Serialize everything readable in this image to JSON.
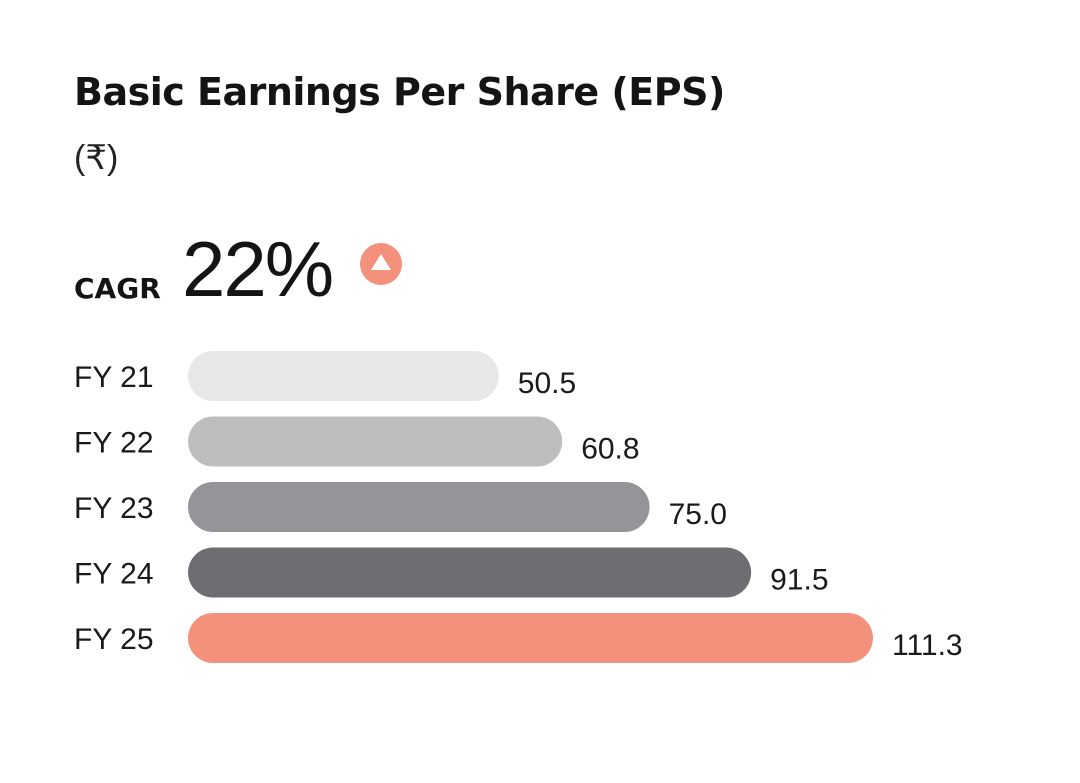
{
  "header": {
    "title": "Basic Earnings Per Share (EPS)",
    "unit": "(₹)"
  },
  "cagr": {
    "label": "CAGR",
    "value": "22%",
    "trend_icon": "triangle-up-icon",
    "trend_color": "#F4917D"
  },
  "chart_data": {
    "type": "bar",
    "orientation": "horizontal",
    "categories": [
      "FY 21",
      "FY 22",
      "FY 23",
      "FY 24",
      "FY 25"
    ],
    "values": [
      50.5,
      60.8,
      75.0,
      91.5,
      111.3
    ],
    "value_labels": [
      "50.5",
      "60.8",
      "75.0",
      "91.5",
      "111.3"
    ],
    "colors": [
      "#E6E7E8",
      "#BDBEC0",
      "#939598",
      "#6D6E71",
      "#F4917D"
    ],
    "grid": false,
    "legend": "none"
  }
}
